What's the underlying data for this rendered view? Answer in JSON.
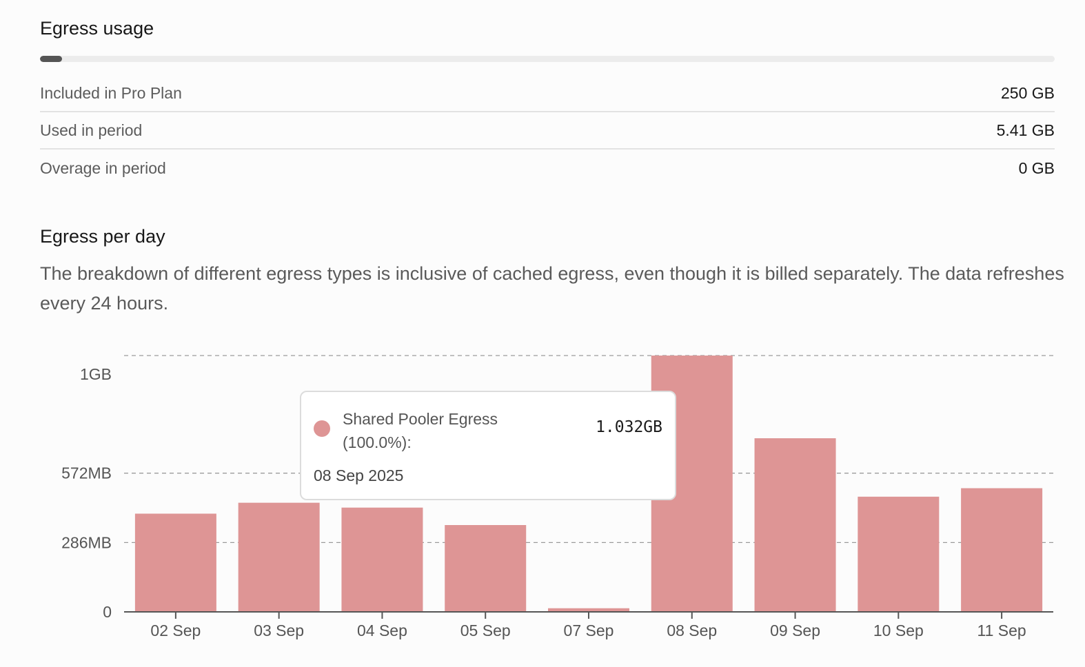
{
  "usage": {
    "title": "Egress usage",
    "progress_fraction": 0.0216,
    "rows": [
      {
        "label": "Included in Pro Plan",
        "value": "250 GB"
      },
      {
        "label": "Used in period",
        "value": "5.41 GB"
      },
      {
        "label": "Overage in period",
        "value": "0 GB"
      }
    ]
  },
  "per_day": {
    "title": "Egress per day",
    "description": "The breakdown of different egress types is inclusive of cached egress, even though it is billed separately. The data refreshes every 24 hours."
  },
  "tooltip": {
    "series_line1": "Shared Pooler Egress",
    "series_line2": "(100.0%):",
    "value": "1.032GB",
    "date": "08 Sep 2025",
    "color": "#de9595"
  },
  "chart_data": {
    "type": "bar",
    "title": "Egress per day",
    "xlabel": "",
    "ylabel": "",
    "categories": [
      "02 Sep",
      "03 Sep",
      "04 Sep",
      "05 Sep",
      "07 Sep",
      "08 Sep",
      "09 Sep",
      "10 Sep",
      "11 Sep"
    ],
    "series": [
      {
        "name": "Shared Pooler Egress",
        "values_mb": [
          405,
          450,
          430,
          358,
          15,
          1057,
          716,
          475,
          510
        ],
        "color": "#de9595"
      }
    ],
    "y_ticks": [
      {
        "value_mb": 0,
        "label": "0"
      },
      {
        "value_mb": 286,
        "label": "286MB"
      },
      {
        "value_mb": 572,
        "label": "572MB"
      },
      {
        "value_mb": 1000,
        "label": "1GB"
      }
    ],
    "gridlines_mb": [
      286,
      572,
      1057
    ],
    "ylim_mb": [
      0,
      1057
    ],
    "grid": true
  }
}
